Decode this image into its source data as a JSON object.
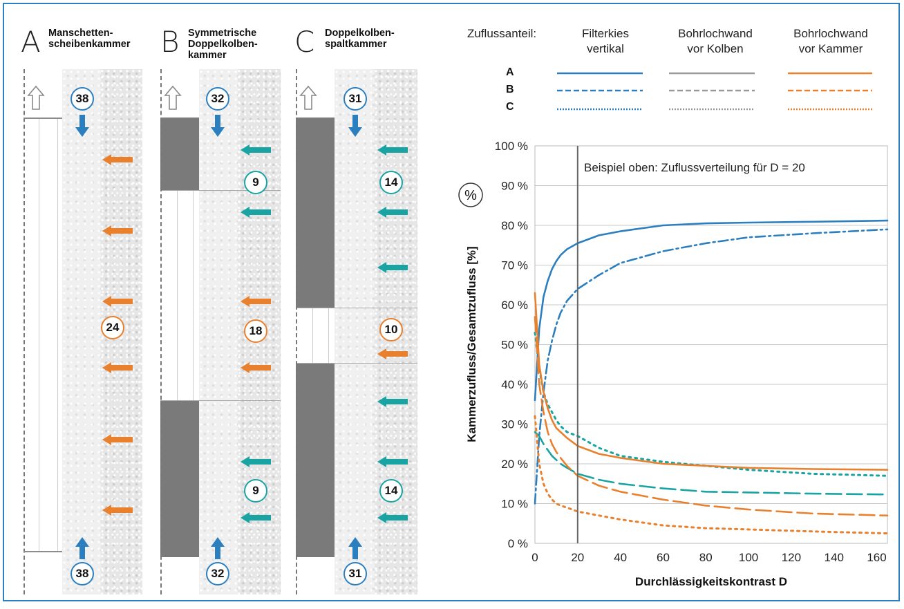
{
  "panels": [
    {
      "letter": "A",
      "label": "Manschetten-\nscheibenkammer",
      "top_flow": "38",
      "bottom_flow": "38",
      "mid_flow": "24"
    },
    {
      "letter": "B",
      "label": "Symmetrische\nDoppelkolben-\nkammer",
      "top_flow": "32",
      "bottom_flow": "32",
      "mid_flow": "18",
      "upper_wall_flow": "9",
      "lower_wall_flow": "9"
    },
    {
      "letter": "C",
      "label": "Doppelkolben-\nspaltkammer",
      "top_flow": "31",
      "bottom_flow": "31",
      "mid_flow": "10",
      "upper_wall_flow": "14",
      "lower_wall_flow": "14"
    }
  ],
  "legend": {
    "heading": "Zuflussanteil:",
    "columns": [
      "Filterkies\nvertikal",
      "Bohrlochwand\nvor Kolben",
      "Bohrlochwand\nvor Kammer"
    ],
    "rows": [
      "A",
      "B",
      "C"
    ]
  },
  "percent_symbol": "%",
  "colors": {
    "blue": "#2c7fbf",
    "gray": "#9a9a9a",
    "orange": "#e8802e",
    "teal": "#1aa3a3",
    "frame": "#2c7fbf"
  },
  "chart_data": {
    "type": "line",
    "title": "",
    "annotation": "Beispiel oben: Zuflussverteilung für D = 20",
    "xlabel": "Durchlässigkeitskontrast D",
    "ylabel": "Kammerzufluss/Gesamtzufluss [%]",
    "xlim": [
      0,
      165
    ],
    "ylim": [
      0,
      100
    ],
    "xticks": [
      0,
      20,
      40,
      60,
      80,
      100,
      120,
      140,
      160
    ],
    "yticks": [
      0,
      10,
      20,
      30,
      40,
      50,
      60,
      70,
      80,
      90,
      100
    ],
    "ytick_labels": [
      "0 %",
      "10 %",
      "20 %",
      "30 %",
      "40 %",
      "50 %",
      "60 %",
      "70 %",
      "80 %",
      "90 %",
      "100 %"
    ],
    "reference_x": 20,
    "grid": true,
    "series": [
      {
        "color": "#2c7fbf",
        "dash": "solid",
        "x": [
          0,
          2,
          4,
          6,
          8,
          10,
          12,
          15,
          20,
          30,
          40,
          60,
          80,
          100,
          130,
          165
        ],
        "y": [
          36,
          54,
          62,
          66,
          69,
          71,
          72.5,
          74,
          75.5,
          77.5,
          78.5,
          80,
          80.5,
          80.7,
          80.9,
          81.2
        ]
      },
      {
        "color": "#2c7fbf",
        "dash": "dashdot",
        "x": [
          0,
          2,
          4,
          6,
          8,
          10,
          12,
          15,
          20,
          30,
          40,
          60,
          80,
          100,
          130,
          165
        ],
        "y": [
          10,
          27,
          38,
          46,
          51,
          55,
          58,
          61,
          64,
          67.5,
          70.5,
          73.5,
          75.5,
          77,
          78,
          79
        ]
      },
      {
        "color": "#1aa3a3",
        "dash": "dotted",
        "x": [
          0,
          2,
          4,
          6,
          8,
          10,
          12,
          15,
          20,
          30,
          40,
          60,
          80,
          100,
          130,
          165
        ],
        "y": [
          53,
          44,
          38,
          35,
          33,
          31,
          29.5,
          28,
          27,
          24,
          22,
          20.5,
          19.5,
          18.5,
          17.5,
          17
        ]
      },
      {
        "color": "#1aa3a3",
        "dash": "longdash",
        "x": [
          0,
          2,
          4,
          6,
          8,
          10,
          12,
          15,
          20,
          30,
          40,
          60,
          80,
          100,
          130,
          165
        ],
        "y": [
          28,
          27,
          25,
          23.5,
          22,
          21,
          20,
          19,
          17.5,
          16,
          15,
          13.8,
          13,
          12.8,
          12.5,
          12.3
        ]
      },
      {
        "color": "#e8802e",
        "dash": "solid",
        "x": [
          0,
          2,
          4,
          6,
          8,
          10,
          12,
          15,
          20,
          30,
          40,
          60,
          80,
          100,
          130,
          165
        ],
        "y": [
          63,
          45,
          38,
          34,
          31,
          29,
          28,
          26.5,
          24.5,
          22.5,
          21.5,
          20,
          19.5,
          19,
          18.7,
          18.5
        ]
      },
      {
        "color": "#e8802e",
        "dash": "longdash",
        "x": [
          0,
          2,
          4,
          6,
          8,
          10,
          12,
          15,
          20,
          30,
          40,
          60,
          80,
          100,
          130,
          165
        ],
        "y": [
          57,
          40,
          33,
          28,
          25,
          23,
          21.5,
          19.5,
          17,
          14.5,
          13,
          11,
          9.5,
          8.5,
          7.5,
          7
        ]
      },
      {
        "color": "#e8802e",
        "dash": "dotted",
        "x": [
          0,
          2,
          4,
          6,
          8,
          10,
          12,
          15,
          20,
          30,
          40,
          60,
          80,
          100,
          130,
          165
        ],
        "y": [
          32,
          20,
          15,
          12.5,
          11,
          10,
          9.5,
          9,
          8,
          7,
          6,
          4.5,
          3.8,
          3.5,
          3,
          2.5
        ]
      }
    ]
  }
}
